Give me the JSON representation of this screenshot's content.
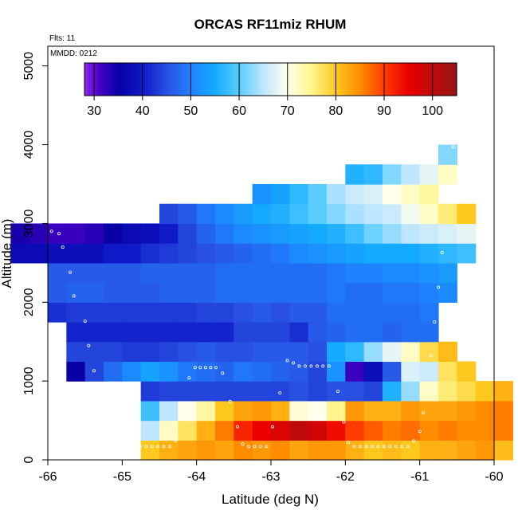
{
  "chart_data": {
    "type": "heatmap",
    "title": "ORCAS RF11miz RHUM",
    "flights_label": "Flts: 11",
    "date_label": "MMDD: 0212",
    "xlabel": "Latitude (deg N)",
    "ylabel": "Altitude (m)",
    "xlim": [
      -66,
      -60
    ],
    "ylim": [
      0,
      5250
    ],
    "x_ticks": [
      -66,
      -65,
      -64,
      -63,
      -62,
      -61,
      -60
    ],
    "y_ticks": [
      0,
      1000,
      2000,
      3000,
      4000,
      5000
    ],
    "cell_width_deg": 0.25,
    "cell_height_m": 250,
    "colorbar": {
      "min": 28,
      "max": 105,
      "ticks": [
        30,
        40,
        50,
        60,
        70,
        80,
        90,
        100
      ]
    },
    "rows": [
      {
        "alt": 0,
        "x0": -64.75,
        "v": [
          80,
          82,
          83,
          84,
          83,
          85,
          84,
          85,
          83,
          84,
          84,
          82,
          80,
          81,
          80,
          82,
          82,
          83,
          84,
          81
        ]
      },
      {
        "alt": 250,
        "x0": -64.75,
        "v": [
          65,
          72,
          77,
          82,
          86,
          92,
          95,
          97,
          100,
          98,
          94,
          90,
          88,
          86,
          87,
          85,
          86,
          85,
          85,
          86
        ]
      },
      {
        "alt": 500,
        "x0": -64.75,
        "v": [
          58,
          65,
          70,
          74,
          80,
          83,
          84,
          82,
          71,
          70,
          75,
          84,
          82,
          82,
          84,
          83,
          83,
          84,
          85,
          86
        ]
      },
      {
        "alt": 750,
        "x0": -64.75,
        "v": [
          43,
          44,
          44,
          44,
          44,
          44,
          44,
          44,
          45,
          44,
          45,
          45,
          44,
          56,
          63,
          72,
          76,
          78,
          80,
          82
        ]
      },
      {
        "alt": 1000,
        "x0": -65.75,
        "v": [
          35,
          44,
          48,
          51,
          54,
          52,
          49,
          48,
          47,
          49,
          48,
          47,
          46,
          44,
          52,
          32,
          38,
          46,
          67,
          66,
          77,
          80
        ]
      },
      {
        "alt": 1250,
        "x0": -65.75,
        "v": [
          44,
          44,
          44,
          43,
          43,
          44,
          45,
          46,
          45,
          45,
          46,
          46,
          46,
          45,
          55,
          57,
          63,
          68,
          72,
          78,
          81
        ]
      },
      {
        "alt": 1500,
        "x0": -65.75,
        "v": [
          41,
          41,
          41,
          41,
          41,
          41,
          41,
          41,
          41,
          44,
          44,
          44,
          42,
          46,
          47,
          48,
          48,
          47,
          48,
          48
        ]
      },
      {
        "alt": 1750,
        "x0": -66.0,
        "v": [
          42,
          43,
          43,
          43,
          43,
          43,
          43,
          43,
          44,
          44,
          45,
          46,
          45,
          46,
          46,
          48,
          48,
          48,
          48,
          48,
          49
        ]
      },
      {
        "alt": 2000,
        "x0": -66.0,
        "v": [
          46,
          47,
          47,
          46,
          46,
          46,
          47,
          47,
          47,
          48,
          48,
          48,
          48,
          48,
          48,
          49,
          48,
          48,
          49,
          49,
          50,
          51
        ]
      },
      {
        "alt": 2250,
        "x0": -66.0,
        "v": [
          46,
          46,
          46,
          46,
          46,
          47,
          47,
          47,
          47,
          48,
          48,
          48,
          48,
          48,
          48,
          49,
          50,
          50,
          51,
          51,
          52,
          53
        ]
      },
      {
        "alt": 2500,
        "x0": -66.5,
        "v": [
          37,
          37,
          38,
          38,
          38,
          40,
          40,
          42,
          43,
          44,
          45,
          46,
          47,
          48,
          49,
          51,
          52,
          53,
          54,
          55,
          55,
          55,
          56,
          57,
          58
        ]
      },
      {
        "alt": 2750,
        "x0": -66.5,
        "v": [
          34,
          33,
          32,
          32,
          33,
          35,
          37,
          38,
          40,
          44,
          47,
          49,
          51,
          52,
          53,
          54,
          55,
          56,
          58,
          61,
          63,
          65,
          66,
          67,
          68
        ]
      },
      {
        "alt": 3000,
        "x0": -64.5,
        "v": [
          44,
          46,
          49,
          51,
          53,
          55,
          56,
          58,
          60,
          62,
          64,
          65,
          66,
          69,
          72,
          76,
          80
        ]
      },
      {
        "alt": 3250,
        "x0": -63.25,
        "v": [
          52,
          54,
          57,
          60,
          64,
          66,
          67,
          70,
          72,
          74
        ]
      },
      {
        "alt": 3500,
        "x0": -62.0,
        "v": [
          56,
          57,
          62,
          65,
          68,
          72
        ]
      },
      {
        "alt": 3750,
        "x0": -60.75,
        "v": [
          62
        ]
      }
    ],
    "flight_points": [
      [
        -65.95,
        2900
      ],
      [
        -65.85,
        2870
      ],
      [
        -65.8,
        2700
      ],
      [
        -65.7,
        2380
      ],
      [
        -65.65,
        2080
      ],
      [
        -65.5,
        1760
      ],
      [
        -65.45,
        1450
      ],
      [
        -65.38,
        1130
      ],
      [
        -65.3,
        810
      ],
      [
        -65.2,
        510
      ],
      [
        -65.1,
        240
      ],
      [
        -65.0,
        170
      ],
      [
        -64.92,
        170
      ],
      [
        -64.84,
        170
      ],
      [
        -64.76,
        170
      ],
      [
        -64.68,
        170
      ],
      [
        -64.6,
        170
      ],
      [
        -64.52,
        170
      ],
      [
        -64.44,
        170
      ],
      [
        -64.36,
        170
      ],
      [
        -64.28,
        240
      ],
      [
        -64.17,
        620
      ],
      [
        -64.1,
        1040
      ],
      [
        -64.02,
        1170
      ],
      [
        -63.95,
        1170
      ],
      [
        -63.88,
        1170
      ],
      [
        -63.81,
        1170
      ],
      [
        -63.74,
        1170
      ],
      [
        -63.65,
        1100
      ],
      [
        -63.55,
        740
      ],
      [
        -63.45,
        420
      ],
      [
        -63.38,
        200
      ],
      [
        -63.3,
        170
      ],
      [
        -63.22,
        170
      ],
      [
        -63.14,
        170
      ],
      [
        -63.06,
        170
      ],
      [
        -62.98,
        420
      ],
      [
        -62.88,
        850
      ],
      [
        -62.78,
        1260
      ],
      [
        -62.7,
        1230
      ],
      [
        -62.62,
        1190
      ],
      [
        -62.54,
        1190
      ],
      [
        -62.46,
        1190
      ],
      [
        -62.38,
        1190
      ],
      [
        -62.3,
        1190
      ],
      [
        -62.22,
        1190
      ],
      [
        -62.1,
        870
      ],
      [
        -62.02,
        480
      ],
      [
        -61.96,
        220
      ],
      [
        -61.88,
        170
      ],
      [
        -61.8,
        170
      ],
      [
        -61.72,
        170
      ],
      [
        -61.64,
        170
      ],
      [
        -61.56,
        170
      ],
      [
        -61.48,
        170
      ],
      [
        -61.4,
        170
      ],
      [
        -61.32,
        170
      ],
      [
        -61.24,
        170
      ],
      [
        -61.16,
        170
      ],
      [
        -61.08,
        240
      ],
      [
        -61.0,
        360
      ],
      [
        -60.95,
        600
      ],
      [
        -60.9,
        890
      ],
      [
        -60.85,
        1320
      ],
      [
        -60.8,
        1750
      ],
      [
        -60.75,
        2190
      ],
      [
        -60.7,
        2630
      ],
      [
        -60.55,
        3970
      ],
      [
        -60.62,
        3420
      ]
    ]
  }
}
